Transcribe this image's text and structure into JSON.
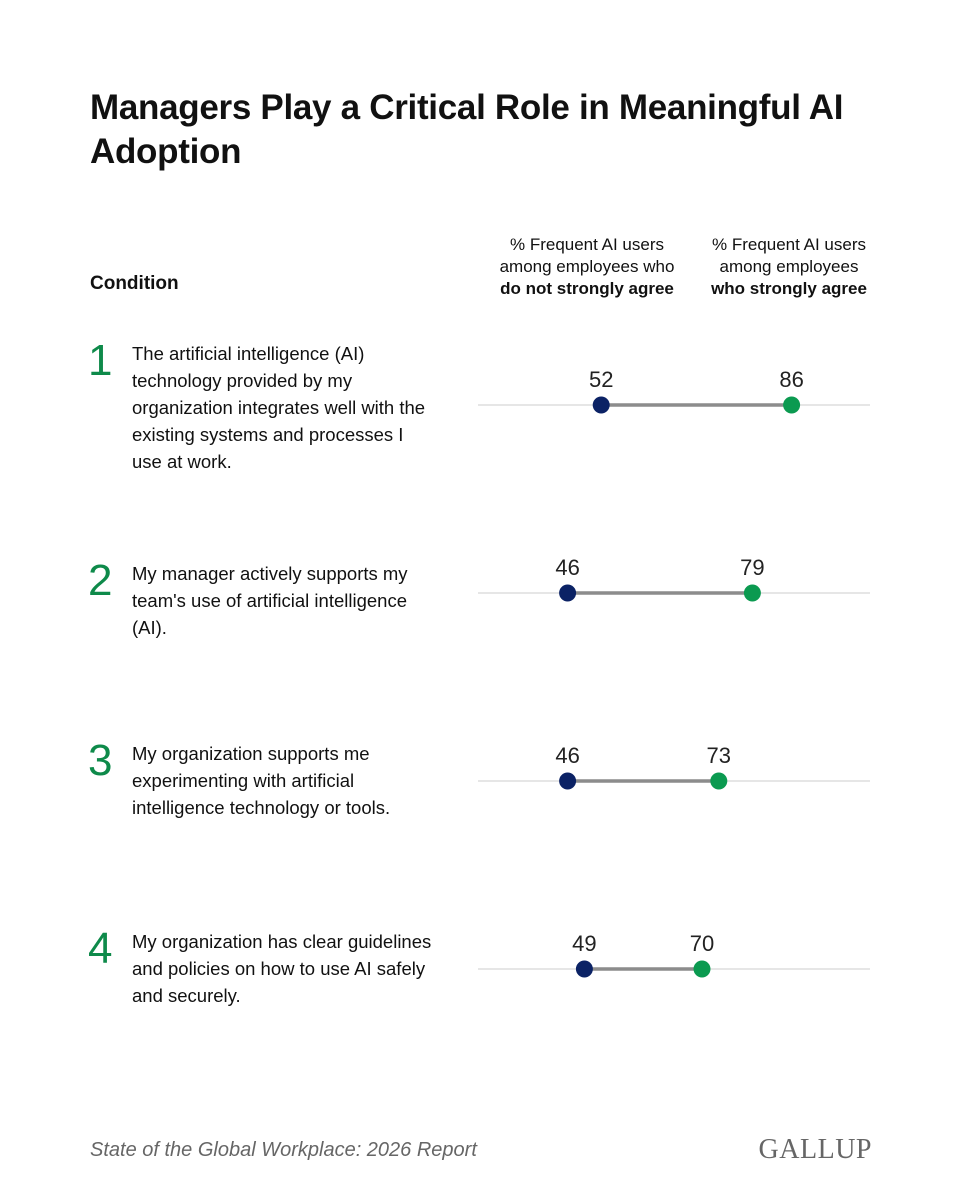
{
  "chart_data": {
    "type": "dumbbell",
    "title": "Managers Play a Critical Role in Meaningful AI Adoption",
    "category_header": "Condition",
    "ranks": [
      1,
      2,
      3,
      4
    ],
    "categories": [
      "The artificial intelligence (AI) technology provided by my organization integrates well with the existing systems and processes I use at work.",
      "My manager actively supports my team's use of artificial intelligence (AI).",
      "My organization supports me experimenting with artificial intelligence technology or tools.",
      "My organization has clear guidelines and policies on how to use AI safely and securely."
    ],
    "series": [
      {
        "name": "% Frequent AI users among employees who",
        "emphasis": "do not strongly agree",
        "color": "#0b2265",
        "values": [
          52,
          46,
          46,
          49
        ]
      },
      {
        "name": "% Frequent AI users among employees",
        "emphasis": "who strongly agree",
        "color": "#0b9a50",
        "values": [
          86,
          79,
          73,
          70
        ]
      }
    ],
    "connector_color": "#8c8c8c",
    "xlim": [
      30,
      100
    ],
    "source": "State of the Global Workplace: 2026 Report",
    "brand": "GALLUP"
  }
}
